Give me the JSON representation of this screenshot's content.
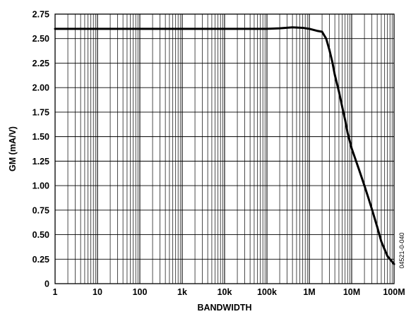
{
  "chart_data": {
    "type": "line",
    "title": "",
    "xlabel": "BANDWIDTH",
    "ylabel": "GM (mA/V)",
    "xscale": "log",
    "xlim": [
      1,
      100000000
    ],
    "ylim": [
      0,
      2.75
    ],
    "grid": true,
    "x_tick_labels": [
      "1",
      "10",
      "100",
      "1k",
      "10k",
      "100k",
      "1M",
      "10M",
      "100M"
    ],
    "y_tick_labels": [
      "0",
      "0.25",
      "0.50",
      "0.75",
      "1.00",
      "1.25",
      "1.50",
      "1.75",
      "2.00",
      "2.25",
      "2.50",
      "2.75"
    ],
    "series": [
      {
        "color": "#000000",
        "x": [
          1,
          10,
          100,
          1000,
          10000,
          100000,
          200000,
          400000,
          700000,
          1000000,
          1500000,
          2000000,
          2500000,
          3000000,
          3500000,
          4000000,
          5000000,
          6000000,
          7000000,
          8000000,
          10000000,
          15000000,
          20000000,
          25000000,
          30000000,
          40000000,
          50000000,
          70000000,
          100000000
        ],
        "y": [
          2.6,
          2.6,
          2.6,
          2.6,
          2.6,
          2.6,
          2.605,
          2.615,
          2.61,
          2.6,
          2.58,
          2.57,
          2.5,
          2.38,
          2.26,
          2.13,
          1.96,
          1.8,
          1.67,
          1.54,
          1.38,
          1.16,
          1.0,
          0.87,
          0.76,
          0.58,
          0.43,
          0.28,
          0.2
        ]
      }
    ],
    "side_note": "04521-0-040"
  }
}
